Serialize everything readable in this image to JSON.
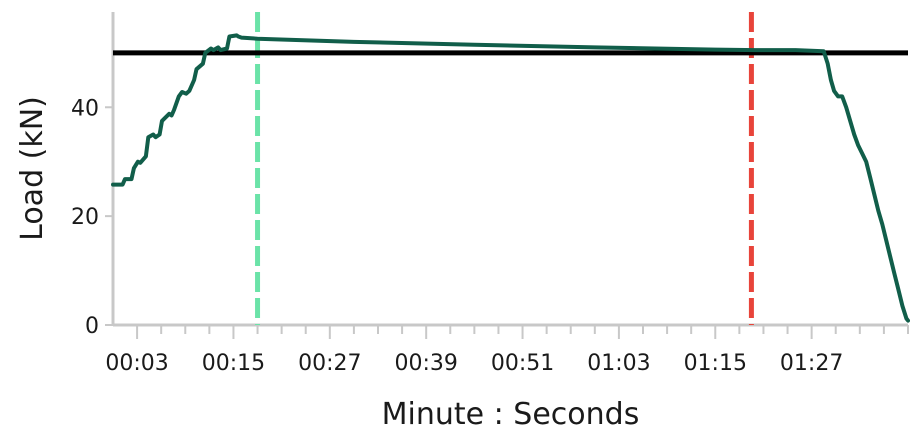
{
  "chart_data": {
    "type": "line",
    "title": "",
    "xlabel": "Minute : Seconds",
    "ylabel": "Load (kN)",
    "xlim": [
      0,
      99
    ],
    "ylim": [
      0,
      57.5
    ],
    "x_ticks": [
      3,
      15,
      27,
      39,
      51,
      63,
      75,
      87
    ],
    "x_tick_labels": [
      "00:03",
      "00:15",
      "00:27",
      "00:39",
      "00:51",
      "01:03",
      "01:15",
      "01:27"
    ],
    "x_minor_step": 3,
    "y_ticks": [
      0,
      20,
      40
    ],
    "y_tick_labels": [
      "0",
      "20",
      "40"
    ],
    "grid": false,
    "threshold": {
      "y": 50,
      "color": "#000000"
    },
    "markers": [
      {
        "x": 18,
        "color": "#6be3a8"
      },
      {
        "x": 79.5,
        "color": "#e8443a"
      }
    ],
    "series": [
      {
        "color": "#115e4a",
        "x": [
          0,
          1.2,
          1.5,
          2.3,
          2.6,
          3.1,
          3.4,
          4.1,
          4.4,
          5.0,
          5.3,
          5.8,
          6.1,
          7.0,
          7.3,
          7.6,
          8.2,
          8.6,
          9.1,
          9.5,
          10.1,
          10.4,
          11.2,
          11.5,
          12.2,
          12.5,
          13.1,
          13.4,
          14.2,
          14.5,
          15.4,
          15.6,
          16.0,
          18.0,
          30,
          45,
          60,
          75,
          80,
          85,
          88.5,
          89.0,
          89.4,
          89.8,
          90.3,
          90.8,
          91.3,
          91.8,
          92.3,
          92.8,
          93.3,
          93.8,
          94.3,
          94.8,
          95.3,
          95.8,
          96.3,
          96.8,
          97.3,
          97.8,
          98.3,
          98.8,
          99.0
        ],
        "y": [
          25.8,
          25.8,
          26.8,
          26.8,
          28.8,
          30.0,
          29.8,
          31.0,
          34.5,
          35.0,
          34.5,
          35.0,
          37.5,
          38.8,
          38.5,
          39.5,
          42.0,
          42.8,
          42.5,
          43.0,
          45.0,
          47.0,
          48.0,
          50.0,
          50.8,
          50.5,
          51.0,
          50.5,
          50.8,
          53.0,
          53.2,
          53.0,
          52.8,
          52.6,
          52.0,
          51.5,
          51.0,
          50.6,
          50.5,
          50.5,
          50.3,
          48.0,
          45.0,
          43.0,
          42.0,
          42.0,
          40.0,
          37.5,
          35.0,
          33.0,
          31.5,
          30.0,
          27.0,
          24.0,
          21.0,
          18.5,
          15.5,
          12.5,
          9.5,
          6.5,
          3.5,
          1.2,
          0.8
        ]
      }
    ]
  }
}
